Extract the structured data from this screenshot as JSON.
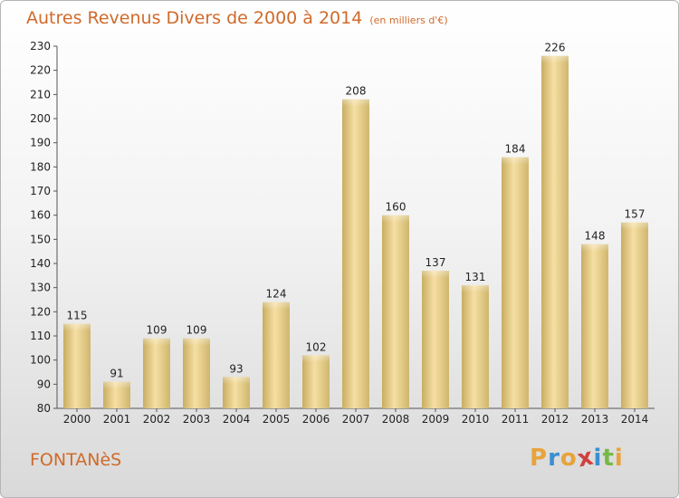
{
  "title": "Autres Revenus Divers de 2000 à 2014",
  "subtitle": "(en milliers d'€)",
  "location": "FONTANèS",
  "brand": [
    "P",
    "r",
    "o",
    "x",
    "i",
    "t",
    "i"
  ],
  "brand_colors": [
    "#e8a33a",
    "#3a8fd0",
    "#e8a33a",
    "#d04040",
    "#3a8fd0",
    "#78b848",
    "#e8a33a"
  ],
  "colors": {
    "title": "#d06a2a",
    "bar_light": "#f6dfa3",
    "bar_dark": "#c8ad62"
  },
  "chart_data": {
    "type": "bar",
    "categories": [
      "2000",
      "2001",
      "2002",
      "2003",
      "2004",
      "2005",
      "2006",
      "2007",
      "2008",
      "2009",
      "2010",
      "2011",
      "2012",
      "2013",
      "2014"
    ],
    "values": [
      115,
      91,
      109,
      109,
      93,
      124,
      102,
      208,
      160,
      137,
      131,
      184,
      226,
      148,
      157
    ],
    "ylim": [
      80,
      230
    ],
    "yticks": [
      80,
      90,
      100,
      110,
      120,
      130,
      140,
      150,
      160,
      170,
      180,
      190,
      200,
      210,
      220,
      230
    ],
    "grid": false
  }
}
